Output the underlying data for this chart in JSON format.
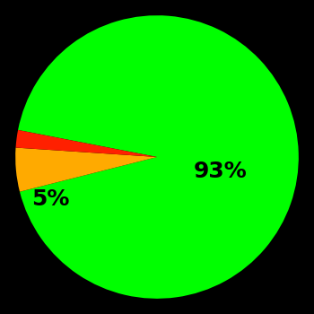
{
  "slices": [
    93,
    5,
    2
  ],
  "colors": [
    "#00ff00",
    "#ffaa00",
    "#ff2000"
  ],
  "labels": [
    "93%",
    "5%",
    ""
  ],
  "background_color": "#000000",
  "text_color": "#000000",
  "startangle": 169,
  "fontsize": 18,
  "figsize": [
    3.5,
    3.5
  ],
  "dpi": 100
}
